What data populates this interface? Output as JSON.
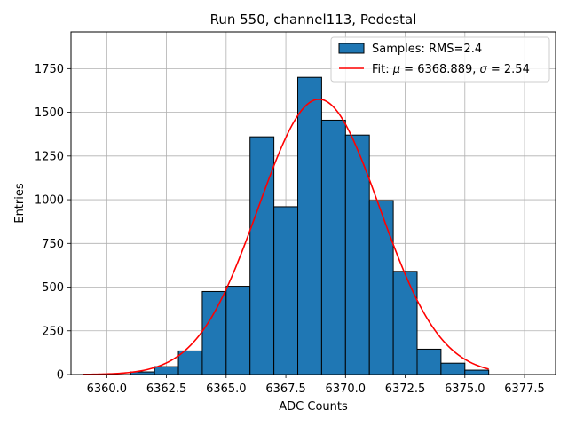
{
  "chart_data": {
    "type": "bar",
    "title": "Run 550, channel113, Pedestal",
    "xlabel": "ADC Counts",
    "ylabel": "Entries",
    "xlim": [
      6358.5,
      6378.8
    ],
    "ylim": [
      0,
      1960
    ],
    "grid": true,
    "x_ticks": [
      6360.0,
      6362.5,
      6365.0,
      6367.5,
      6370.0,
      6372.5,
      6375.0,
      6377.5
    ],
    "x_tick_labels": [
      "6360.0",
      "6362.5",
      "6365.0",
      "6367.5",
      "6370.0",
      "6372.5",
      "6375.0",
      "6377.5"
    ],
    "y_ticks": [
      0,
      250,
      500,
      750,
      1000,
      1250,
      1500,
      1750
    ],
    "y_tick_labels": [
      "0",
      "250",
      "500",
      "750",
      "1000",
      "1250",
      "1500",
      "1750"
    ],
    "bins": [
      {
        "x0": 6361.0,
        "x1": 6362.0,
        "value": 15
      },
      {
        "x0": 6362.0,
        "x1": 6363.0,
        "value": 45
      },
      {
        "x0": 6363.0,
        "x1": 6364.0,
        "value": 135
      },
      {
        "x0": 6364.0,
        "x1": 6365.0,
        "value": 475
      },
      {
        "x0": 6365.0,
        "x1": 6366.0,
        "value": 505
      },
      {
        "x0": 6366.0,
        "x1": 6367.0,
        "value": 1360
      },
      {
        "x0": 6367.0,
        "x1": 6368.0,
        "value": 960
      },
      {
        "x0": 6368.0,
        "x1": 6369.0,
        "value": 1700
      },
      {
        "x0": 6369.0,
        "x1": 6370.0,
        "value": 1455
      },
      {
        "x0": 6370.0,
        "x1": 6371.0,
        "value": 1370
      },
      {
        "x0": 6371.0,
        "x1": 6372.0,
        "value": 995
      },
      {
        "x0": 6372.0,
        "x1": 6373.0,
        "value": 590
      },
      {
        "x0": 6373.0,
        "x1": 6374.0,
        "value": 145
      },
      {
        "x0": 6374.0,
        "x1": 6375.0,
        "value": 65
      },
      {
        "x0": 6375.0,
        "x1": 6376.0,
        "value": 25
      }
    ],
    "fit": {
      "mu": 6368.889,
      "sigma": 2.54,
      "amplitude": 1575,
      "x_range": [
        6359.0,
        6376.0
      ]
    },
    "legend_position": "top-right",
    "legend": [
      {
        "label": "Samples: RMS=2.4",
        "kind": "patch"
      },
      {
        "label_prefix": "Fit: ",
        "label_mu": "μ",
        "label_mid": " = 6368.889, ",
        "label_sigma": "σ",
        "label_suffix": " = 2.54",
        "kind": "line"
      }
    ]
  },
  "colors": {
    "bar_fill": "#1f77b4",
    "bar_edge": "#000000",
    "fit_line": "#ff0000",
    "grid": "#b0b0b0"
  }
}
